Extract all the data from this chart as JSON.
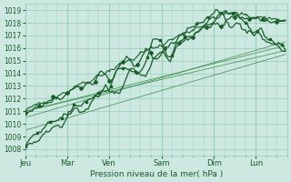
{
  "title": "",
  "xlabel": "Pression niveau de la mer( hPa )",
  "ylim": [
    1007.5,
    1019.5
  ],
  "yticks": [
    1008,
    1009,
    1010,
    1011,
    1012,
    1013,
    1014,
    1015,
    1016,
    1017,
    1018,
    1019
  ],
  "x_day_labels": [
    "Jeu",
    "Mar",
    "Ven",
    "Sam",
    "Dim",
    "Lun"
  ],
  "x_day_positions": [
    0,
    24,
    48,
    78,
    108,
    132
  ],
  "xlim": [
    0,
    150
  ],
  "background_color": "#cce8e0",
  "grid_color": "#99ccbb",
  "line_color_dark": "#1a5c2a",
  "line_color_medium": "#2a7a3a",
  "line_color_thin": "#3a8c4a",
  "n_points": 150,
  "thin_line_starts": [
    1011.0,
    1011.0,
    1010.5,
    1009.5
  ],
  "thin_line_ends": [
    1016.2,
    1015.8,
    1016.5,
    1015.5
  ]
}
